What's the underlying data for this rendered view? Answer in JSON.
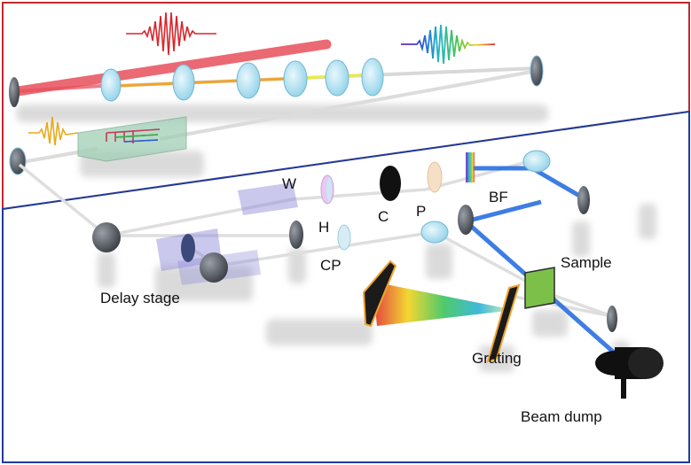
{
  "labels": {
    "w": "W",
    "h": "H",
    "c": "C",
    "p": "P",
    "bf": "BF",
    "cp": "CP",
    "delay_stage": "Delay stage",
    "sample": "Sample",
    "grating": "Grating",
    "beam_dump": "Beam dump"
  },
  "colors": {
    "upper_frame": "#c0282d",
    "lower_frame": "#1f3a9a",
    "red_beam": "#e8505b",
    "blue_beam": "#2a6fe0",
    "stage": "#8a86d8",
    "optics": "#a9dcef",
    "waveguide_chip": "#9fcfb5"
  }
}
